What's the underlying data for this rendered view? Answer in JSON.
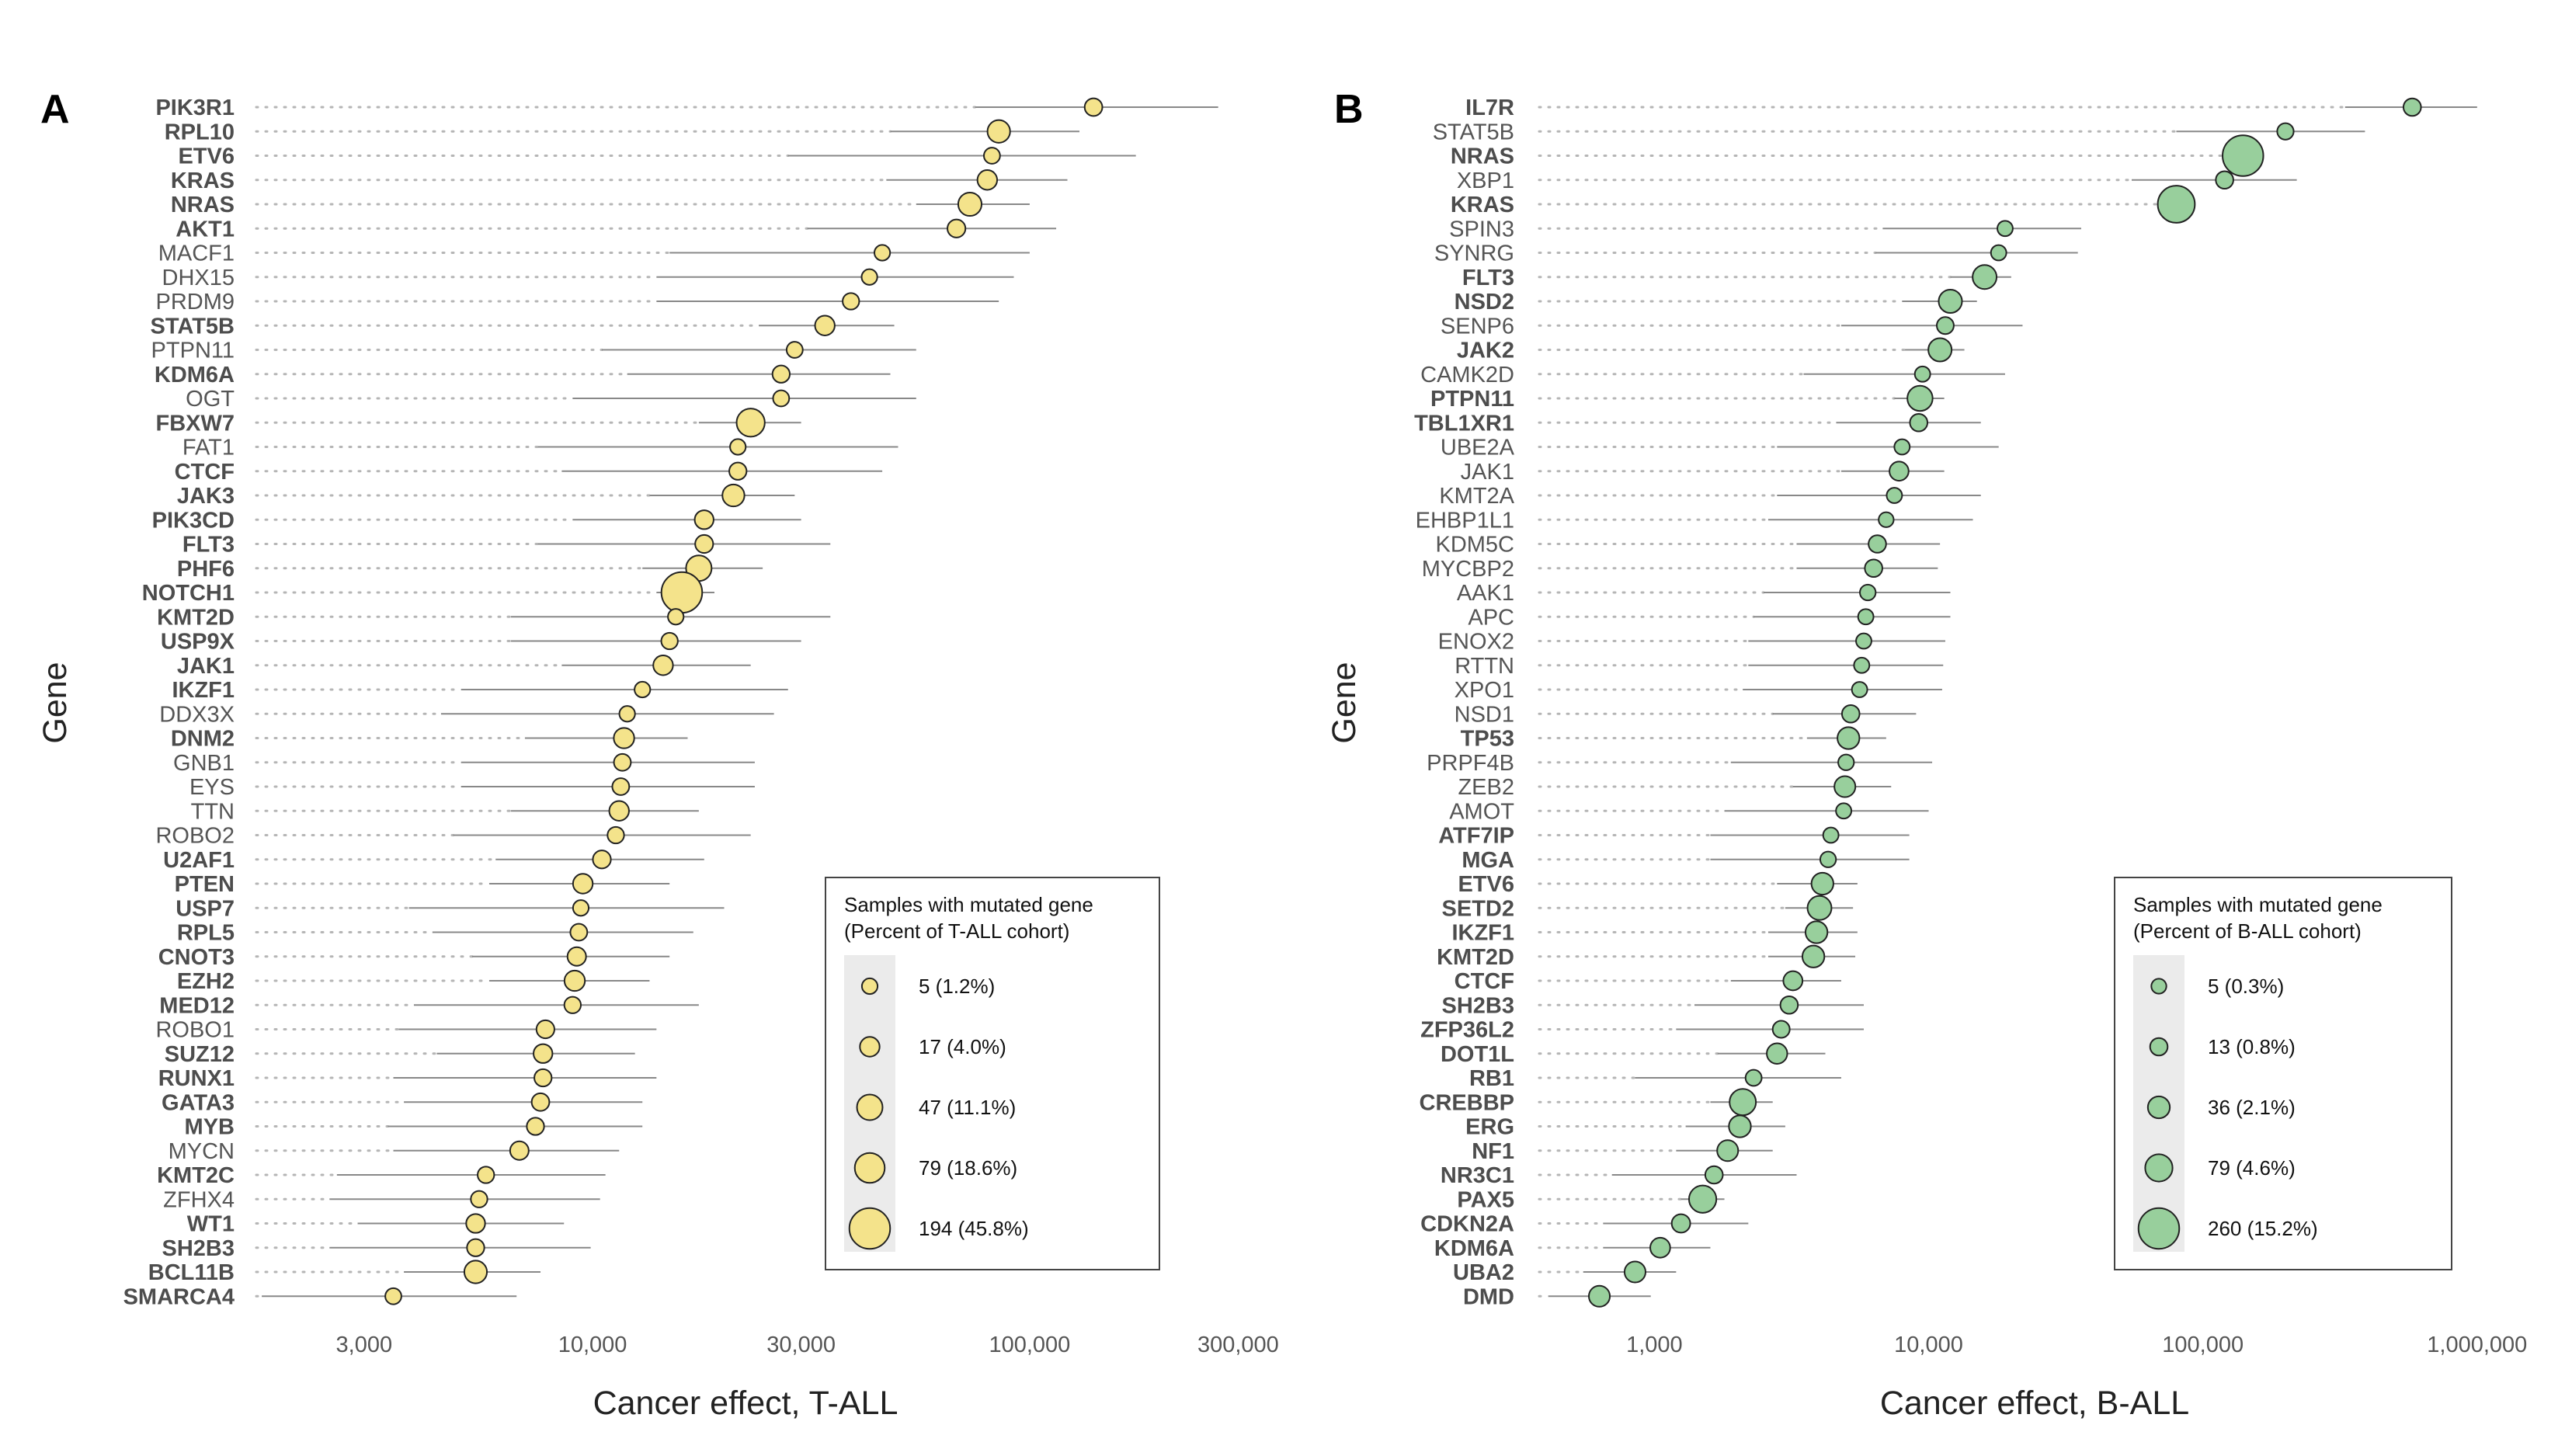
{
  "colors": {
    "panel_a_fill": "#f4e38b",
    "panel_b_fill": "#98cf9c",
    "point_stroke": "#222222",
    "ci_line": "#888888",
    "dot_guide": "#b5b5b5"
  },
  "chart_data": [
    {
      "type": "scatter",
      "panel_label": "A",
      "xlabel": "Cancer effect, T-ALL",
      "ylabel": "Gene",
      "x_scale": "log",
      "xlim": [
        1700,
        340000
      ],
      "x_ticks": [
        3000,
        10000,
        30000,
        100000,
        300000
      ],
      "x_tick_labels": [
        "3,000",
        "10,000",
        "30,000",
        "100,000",
        "300,000"
      ],
      "grid": false,
      "legend": {
        "position": "bottom-right",
        "title_lines": [
          "Samples with mutated gene",
          "(Percent of T-ALL cohort)"
        ],
        "entries": [
          {
            "n": 5,
            "label": "5 (1.2%)"
          },
          {
            "n": 17,
            "label": "17 (4.0%)"
          },
          {
            "n": 47,
            "label": "47 (11.1%)"
          },
          {
            "n": 79,
            "label": "79 (18.6%)"
          },
          {
            "n": 194,
            "label": "194 (45.8%)"
          }
        ]
      },
      "points": [
        {
          "gene": "PIK3R1",
          "bold": true,
          "effect": 140000,
          "low": 75000,
          "high": 270000,
          "n": 10
        },
        {
          "gene": "RPL10",
          "bold": true,
          "effect": 85000,
          "low": 48000,
          "high": 130000,
          "n": 30
        },
        {
          "gene": "ETV6",
          "bold": true,
          "effect": 82000,
          "low": 28000,
          "high": 175000,
          "n": 6
        },
        {
          "gene": "KRAS",
          "bold": true,
          "effect": 80000,
          "low": 47000,
          "high": 122000,
          "n": 17
        },
        {
          "gene": "NRAS",
          "bold": true,
          "effect": 73000,
          "low": 55000,
          "high": 100000,
          "n": 34
        },
        {
          "gene": "AKT1",
          "bold": true,
          "effect": 68000,
          "low": 31000,
          "high": 115000,
          "n": 11
        },
        {
          "gene": "MACF1",
          "bold": false,
          "effect": 46000,
          "low": 15000,
          "high": 100000,
          "n": 5
        },
        {
          "gene": "DHX15",
          "bold": false,
          "effect": 43000,
          "low": 14000,
          "high": 92000,
          "n": 5
        },
        {
          "gene": "PRDM9",
          "bold": false,
          "effect": 39000,
          "low": 14000,
          "high": 85000,
          "n": 7
        },
        {
          "gene": "STAT5B",
          "bold": true,
          "effect": 34000,
          "low": 24000,
          "high": 49000,
          "n": 17
        },
        {
          "gene": "PTPN11",
          "bold": false,
          "effect": 29000,
          "low": 10500,
          "high": 55000,
          "n": 6
        },
        {
          "gene": "KDM6A",
          "bold": true,
          "effect": 27000,
          "low": 12000,
          "high": 48000,
          "n": 9
        },
        {
          "gene": "OGT",
          "bold": false,
          "effect": 27000,
          "low": 9000,
          "high": 55000,
          "n": 6
        },
        {
          "gene": "FBXW7",
          "bold": true,
          "effect": 23000,
          "low": 17500,
          "high": 30000,
          "n": 65
        },
        {
          "gene": "FAT1",
          "bold": false,
          "effect": 21500,
          "low": 7500,
          "high": 50000,
          "n": 5
        },
        {
          "gene": "CTCF",
          "bold": true,
          "effect": 21500,
          "low": 8500,
          "high": 46000,
          "n": 9
        },
        {
          "gene": "JAK3",
          "bold": true,
          "effect": 21000,
          "low": 13500,
          "high": 29000,
          "n": 27
        },
        {
          "gene": "PIK3CD",
          "bold": true,
          "effect": 18000,
          "low": 9000,
          "high": 30000,
          "n": 14
        },
        {
          "gene": "FLT3",
          "bold": true,
          "effect": 18000,
          "low": 7500,
          "high": 35000,
          "n": 11
        },
        {
          "gene": "PHF6",
          "bold": true,
          "effect": 17500,
          "low": 13000,
          "high": 24500,
          "n": 47
        },
        {
          "gene": "NOTCH1",
          "bold": true,
          "effect": 16000,
          "low": 14000,
          "high": 19000,
          "n": 194
        },
        {
          "gene": "KMT2D",
          "bold": true,
          "effect": 15500,
          "low": 6500,
          "high": 35000,
          "n": 5
        },
        {
          "gene": "USP9X",
          "bold": true,
          "effect": 15000,
          "low": 6500,
          "high": 30000,
          "n": 7
        },
        {
          "gene": "JAK1",
          "bold": true,
          "effect": 14500,
          "low": 8500,
          "high": 23000,
          "n": 17
        },
        {
          "gene": "IKZF1",
          "bold": true,
          "effect": 13000,
          "low": 5000,
          "high": 28000,
          "n": 5
        },
        {
          "gene": "DDX3X",
          "bold": false,
          "effect": 12000,
          "low": 4500,
          "high": 26000,
          "n": 5
        },
        {
          "gene": "DNM2",
          "bold": true,
          "effect": 11800,
          "low": 7000,
          "high": 16500,
          "n": 20
        },
        {
          "gene": "GNB1",
          "bold": false,
          "effect": 11700,
          "low": 5000,
          "high": 23500,
          "n": 8
        },
        {
          "gene": "EYS",
          "bold": false,
          "effect": 11600,
          "low": 5000,
          "high": 23500,
          "n": 8
        },
        {
          "gene": "TTN",
          "bold": false,
          "effect": 11500,
          "low": 6500,
          "high": 17500,
          "n": 17
        },
        {
          "gene": "ROBO2",
          "bold": false,
          "effect": 11300,
          "low": 4800,
          "high": 23000,
          "n": 7
        },
        {
          "gene": "U2AF1",
          "bold": true,
          "effect": 10500,
          "low": 6000,
          "high": 18000,
          "n": 11
        },
        {
          "gene": "PTEN",
          "bold": true,
          "effect": 9500,
          "low": 5800,
          "high": 15000,
          "n": 17
        },
        {
          "gene": "USP7",
          "bold": true,
          "effect": 9400,
          "low": 3800,
          "high": 20000,
          "n": 5
        },
        {
          "gene": "RPL5",
          "bold": true,
          "effect": 9300,
          "low": 4300,
          "high": 17000,
          "n": 8
        },
        {
          "gene": "CNOT3",
          "bold": true,
          "effect": 9200,
          "low": 5300,
          "high": 15000,
          "n": 13
        },
        {
          "gene": "EZH2",
          "bold": true,
          "effect": 9100,
          "low": 5800,
          "high": 13500,
          "n": 20
        },
        {
          "gene": "MED12",
          "bold": true,
          "effect": 9000,
          "low": 3900,
          "high": 17500,
          "n": 7
        },
        {
          "gene": "ROBO1",
          "bold": false,
          "effect": 7800,
          "low": 3600,
          "high": 14000,
          "n": 11
        },
        {
          "gene": "SUZ12",
          "bold": true,
          "effect": 7700,
          "low": 4400,
          "high": 12500,
          "n": 14
        },
        {
          "gene": "RUNX1",
          "bold": true,
          "effect": 7700,
          "low": 3500,
          "high": 14000,
          "n": 9
        },
        {
          "gene": "GATA3",
          "bold": true,
          "effect": 7600,
          "low": 3700,
          "high": 13000,
          "n": 10
        },
        {
          "gene": "MYB",
          "bold": true,
          "effect": 7400,
          "low": 3400,
          "high": 13000,
          "n": 9
        },
        {
          "gene": "MYCN",
          "bold": false,
          "effect": 6800,
          "low": 3500,
          "high": 11500,
          "n": 13
        },
        {
          "gene": "KMT2C",
          "bold": true,
          "effect": 5700,
          "low": 2600,
          "high": 10700,
          "n": 7
        },
        {
          "gene": "ZFHX4",
          "bold": false,
          "effect": 5500,
          "low": 2500,
          "high": 10400,
          "n": 7
        },
        {
          "gene": "WT1",
          "bold": true,
          "effect": 5400,
          "low": 2900,
          "high": 8600,
          "n": 14
        },
        {
          "gene": "SH2B3",
          "bold": true,
          "effect": 5400,
          "low": 2500,
          "high": 9900,
          "n": 9
        },
        {
          "gene": "BCL11B",
          "bold": true,
          "effect": 5400,
          "low": 3700,
          "high": 7600,
          "n": 30
        },
        {
          "gene": "SMARCA4",
          "bold": true,
          "effect": 3500,
          "low": 1750,
          "high": 6700,
          "n": 6
        }
      ]
    },
    {
      "type": "scatter",
      "panel_label": "B",
      "xlabel": "Cancer effect, B-ALL",
      "ylabel": "Gene",
      "x_scale": "log",
      "xlim": [
        380,
        1500000
      ],
      "x_ticks": [
        1000,
        10000,
        100000,
        1000000
      ],
      "x_tick_labels": [
        "1,000",
        "10,000",
        "100,000",
        "1,000,000"
      ],
      "grid": false,
      "legend": {
        "position": "bottom-right",
        "title_lines": [
          "Samples with mutated gene",
          "(Percent of B-ALL cohort)"
        ],
        "entries": [
          {
            "n": 5,
            "label": "5 (0.3%)"
          },
          {
            "n": 13,
            "label": "13 (0.8%)"
          },
          {
            "n": 36,
            "label": "36 (2.1%)"
          },
          {
            "n": 79,
            "label": "79 (4.6%)"
          },
          {
            "n": 260,
            "label": "260 (15.2%)"
          }
        ]
      },
      "points": [
        {
          "gene": "IL7R",
          "bold": true,
          "effect": 580000,
          "low": 330000,
          "high": 1000000,
          "n": 13
        },
        {
          "gene": "STAT5B",
          "bold": false,
          "effect": 200000,
          "low": 80000,
          "high": 390000,
          "n": 9
        },
        {
          "gene": "NRAS",
          "bold": true,
          "effect": 140000,
          "low": 118000,
          "high": 163000,
          "n": 260
        },
        {
          "gene": "XBP1",
          "bold": false,
          "effect": 120000,
          "low": 55000,
          "high": 220000,
          "n": 13
        },
        {
          "gene": "KRAS",
          "bold": true,
          "effect": 80000,
          "low": 69000,
          "high": 93000,
          "n": 200
        },
        {
          "gene": "SPIN3",
          "bold": false,
          "effect": 19000,
          "low": 6800,
          "high": 36000,
          "n": 6
        },
        {
          "gene": "SYNRG",
          "bold": false,
          "effect": 18000,
          "low": 6400,
          "high": 35000,
          "n": 6
        },
        {
          "gene": "FLT3",
          "bold": true,
          "effect": 16000,
          "low": 12000,
          "high": 20000,
          "n": 50
        },
        {
          "gene": "NSD2",
          "bold": true,
          "effect": 12000,
          "low": 8000,
          "high": 15000,
          "n": 45
        },
        {
          "gene": "SENP6",
          "bold": false,
          "effect": 11500,
          "low": 4800,
          "high": 22000,
          "n": 11
        },
        {
          "gene": "JAK2",
          "bold": true,
          "effect": 11000,
          "low": 8200,
          "high": 13500,
          "n": 45
        },
        {
          "gene": "CAMK2D",
          "bold": false,
          "effect": 9500,
          "low": 3500,
          "high": 19000,
          "n": 6
        },
        {
          "gene": "PTPN11",
          "bold": true,
          "effect": 9300,
          "low": 7500,
          "high": 11400,
          "n": 60
        },
        {
          "gene": "TBL1XR1",
          "bold": true,
          "effect": 9200,
          "low": 4600,
          "high": 15500,
          "n": 13
        },
        {
          "gene": "UBE2A",
          "bold": false,
          "effect": 8000,
          "low": 2800,
          "high": 18000,
          "n": 6
        },
        {
          "gene": "JAK1",
          "bold": false,
          "effect": 7800,
          "low": 4800,
          "high": 11400,
          "n": 20
        },
        {
          "gene": "KMT2A",
          "bold": false,
          "effect": 7500,
          "low": 2800,
          "high": 15500,
          "n": 6
        },
        {
          "gene": "EHBP1L1",
          "bold": false,
          "effect": 7000,
          "low": 2600,
          "high": 14500,
          "n": 5
        },
        {
          "gene": "KDM5C",
          "bold": false,
          "effect": 6500,
          "low": 3300,
          "high": 11000,
          "n": 13
        },
        {
          "gene": "MYCBP2",
          "bold": false,
          "effect": 6300,
          "low": 3300,
          "high": 10800,
          "n": 13
        },
        {
          "gene": "AAK1",
          "bold": false,
          "effect": 6000,
          "low": 2500,
          "high": 12000,
          "n": 7
        },
        {
          "gene": "APC",
          "bold": false,
          "effect": 5900,
          "low": 2300,
          "high": 12000,
          "n": 6
        },
        {
          "gene": "ENOX2",
          "bold": false,
          "effect": 5800,
          "low": 2200,
          "high": 11500,
          "n": 6
        },
        {
          "gene": "RTTN",
          "bold": false,
          "effect": 5700,
          "low": 2200,
          "high": 11300,
          "n": 6
        },
        {
          "gene": "XPO1",
          "bold": false,
          "effect": 5600,
          "low": 2100,
          "high": 11200,
          "n": 6
        },
        {
          "gene": "NSD1",
          "bold": false,
          "effect": 5200,
          "low": 2700,
          "high": 9000,
          "n": 13
        },
        {
          "gene": "TP53",
          "bold": true,
          "effect": 5100,
          "low": 3600,
          "high": 7000,
          "n": 36
        },
        {
          "gene": "PRPF4B",
          "bold": false,
          "effect": 5000,
          "low": 1900,
          "high": 10300,
          "n": 7
        },
        {
          "gene": "ZEB2",
          "bold": false,
          "effect": 4950,
          "low": 3200,
          "high": 7300,
          "n": 30
        },
        {
          "gene": "AMOT",
          "bold": false,
          "effect": 4900,
          "low": 1800,
          "high": 10000,
          "n": 6
        },
        {
          "gene": "ATF7IP",
          "bold": true,
          "effect": 4400,
          "low": 1600,
          "high": 8500,
          "n": 6
        },
        {
          "gene": "MGA",
          "bold": true,
          "effect": 4300,
          "low": 1600,
          "high": 8500,
          "n": 7
        },
        {
          "gene": "ETV6",
          "bold": true,
          "effect": 4100,
          "low": 2800,
          "high": 5500,
          "n": 36
        },
        {
          "gene": "SETD2",
          "bold": true,
          "effect": 4000,
          "low": 3000,
          "high": 5300,
          "n": 50
        },
        {
          "gene": "IKZF1",
          "bold": true,
          "effect": 3900,
          "low": 2600,
          "high": 5500,
          "n": 36
        },
        {
          "gene": "KMT2D",
          "bold": true,
          "effect": 3800,
          "low": 2600,
          "high": 5400,
          "n": 36
        },
        {
          "gene": "CTCF",
          "bold": true,
          "effect": 3200,
          "low": 1900,
          "high": 4800,
          "n": 20
        },
        {
          "gene": "SH2B3",
          "bold": true,
          "effect": 3100,
          "low": 1400,
          "high": 5800,
          "n": 13
        },
        {
          "gene": "ZFP36L2",
          "bold": true,
          "effect": 2900,
          "low": 1200,
          "high": 5800,
          "n": 11
        },
        {
          "gene": "DOT1L",
          "bold": true,
          "effect": 2800,
          "low": 1700,
          "high": 4200,
          "n": 27
        },
        {
          "gene": "RB1",
          "bold": true,
          "effect": 2300,
          "low": 850,
          "high": 4800,
          "n": 8
        },
        {
          "gene": "CREBBP",
          "bold": true,
          "effect": 2100,
          "low": 1600,
          "high": 2700,
          "n": 70
        },
        {
          "gene": "ERG",
          "bold": true,
          "effect": 2050,
          "low": 1300,
          "high": 3000,
          "n": 36
        },
        {
          "gene": "NF1",
          "bold": true,
          "effect": 1850,
          "low": 1200,
          "high": 2700,
          "n": 30
        },
        {
          "gene": "NR3C1",
          "bold": true,
          "effect": 1650,
          "low": 700,
          "high": 3300,
          "n": 13
        },
        {
          "gene": "PAX5",
          "bold": true,
          "effect": 1500,
          "low": 1250,
          "high": 1800,
          "n": 79
        },
        {
          "gene": "CDKN2A",
          "bold": true,
          "effect": 1250,
          "low": 650,
          "high": 2200,
          "n": 17
        },
        {
          "gene": "KDM6A",
          "bold": true,
          "effect": 1050,
          "low": 650,
          "high": 1600,
          "n": 24
        },
        {
          "gene": "UBA2",
          "bold": true,
          "effect": 850,
          "low": 550,
          "high": 1200,
          "n": 30
        },
        {
          "gene": "DMD",
          "bold": true,
          "effect": 630,
          "low": 410,
          "high": 970,
          "n": 30
        }
      ]
    }
  ]
}
